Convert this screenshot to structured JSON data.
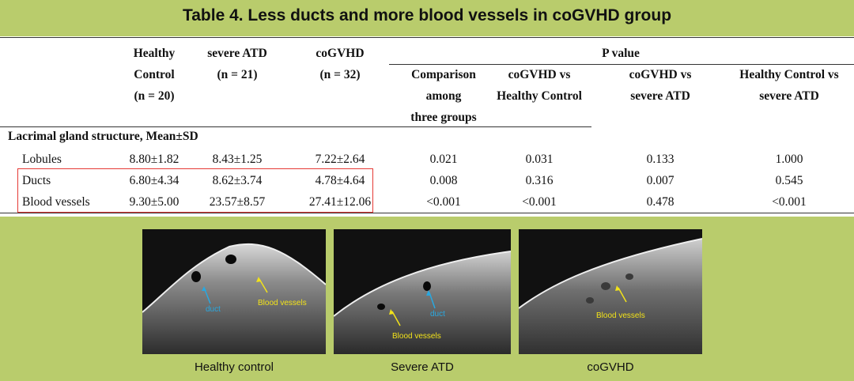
{
  "title": "Table 4. Less ducts and more blood vessels in coGVHD group",
  "table": {
    "columns": {
      "healthy": [
        "Healthy",
        "Control",
        "(n = 20)"
      ],
      "severe": [
        "severe ATD",
        "(n = 21)"
      ],
      "cogvhd": [
        "coGVHD",
        "(n = 32)"
      ],
      "pvalue": "P value",
      "comparison": [
        "Comparison",
        "among",
        "three groups"
      ],
      "cog_vs_hc": [
        "coGVHD vs",
        "Healthy Control"
      ],
      "cog_vs_atd": [
        "coGVHD vs",
        "severe ATD"
      ],
      "hc_vs_atd": [
        "Healthy Control vs",
        "severe ATD"
      ]
    },
    "section_label": "Lacrimal gland structure, Mean±SD",
    "rows": [
      {
        "label": "Lobules",
        "healthy": "8.80±1.82",
        "severe": "8.43±1.25",
        "cogvhd": "7.22±2.64",
        "p_all": "0.021",
        "p_cog_hc": "0.031",
        "p_cog_atd": "0.133",
        "p_hc_atd": "1.000"
      },
      {
        "label": "Ducts",
        "healthy": "6.80±4.34",
        "severe": "8.62±3.74",
        "cogvhd": "4.78±4.64",
        "p_all": "0.008",
        "p_cog_hc": "0.316",
        "p_cog_atd": "0.007",
        "p_hc_atd": "0.545"
      },
      {
        "label": "Blood vessels",
        "healthy": "9.30±5.00",
        "severe": "23.57±8.57",
        "cogvhd": "27.41±12.06",
        "p_all": "<0.001",
        "p_cog_hc": "<0.001",
        "p_cog_atd": "0.478",
        "p_hc_atd": "<0.001"
      }
    ]
  },
  "images": [
    {
      "caption": "Healthy control",
      "labels": {
        "duct": "duct",
        "vessels": "Blood vessels"
      }
    },
    {
      "caption": "Severe ATD",
      "labels": {
        "duct": "duct",
        "vessels": "Blood vessels"
      }
    },
    {
      "caption": "coGVHD",
      "labels": {
        "vessels": "Blood vessels"
      }
    }
  ],
  "colors": {
    "background": "#b9cc6c",
    "highlight": "#e53935",
    "duct_label": "#29a8e0",
    "vessel_label": "#f2e21a"
  }
}
